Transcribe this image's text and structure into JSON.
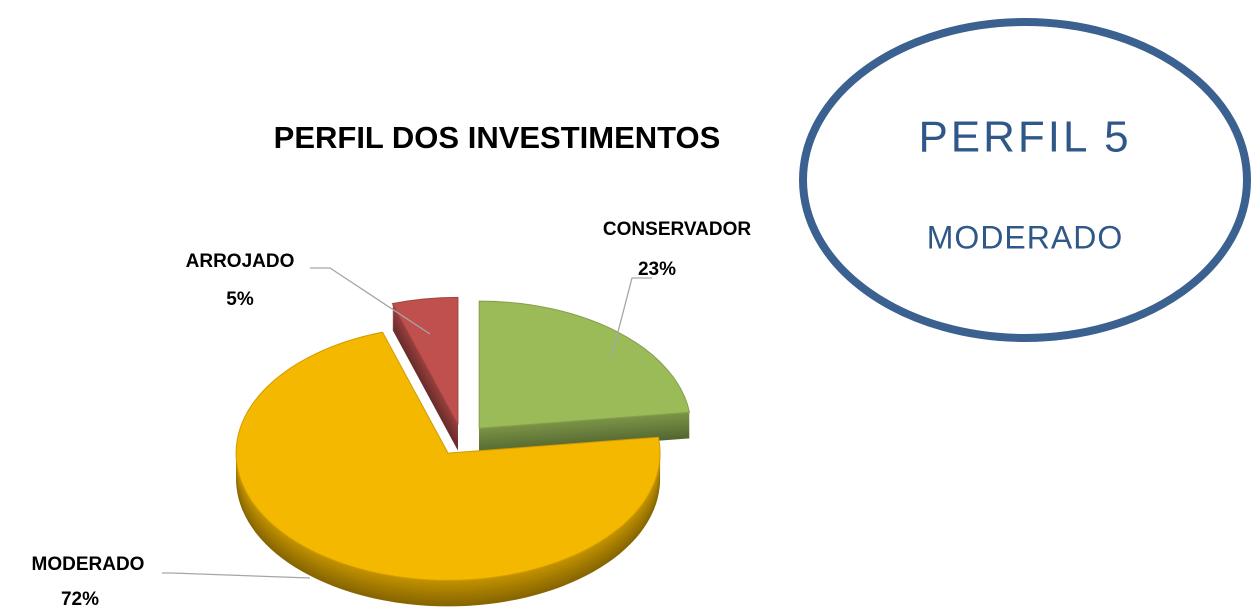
{
  "chart_data": {
    "type": "pie",
    "title": "PERFIL DOS INVESTIMENTOS",
    "categories": [
      "CONSERVADOR",
      "MODERADO",
      "ARROJADO"
    ],
    "values": [
      23,
      72,
      5
    ],
    "value_labels": [
      "23%",
      "72%",
      "5%"
    ],
    "colors": [
      "#9bbb59",
      "#f5b800",
      "#c0504d"
    ]
  },
  "profile_badge": {
    "title": "PERFIL 5",
    "subtitle": "MODERADO"
  }
}
